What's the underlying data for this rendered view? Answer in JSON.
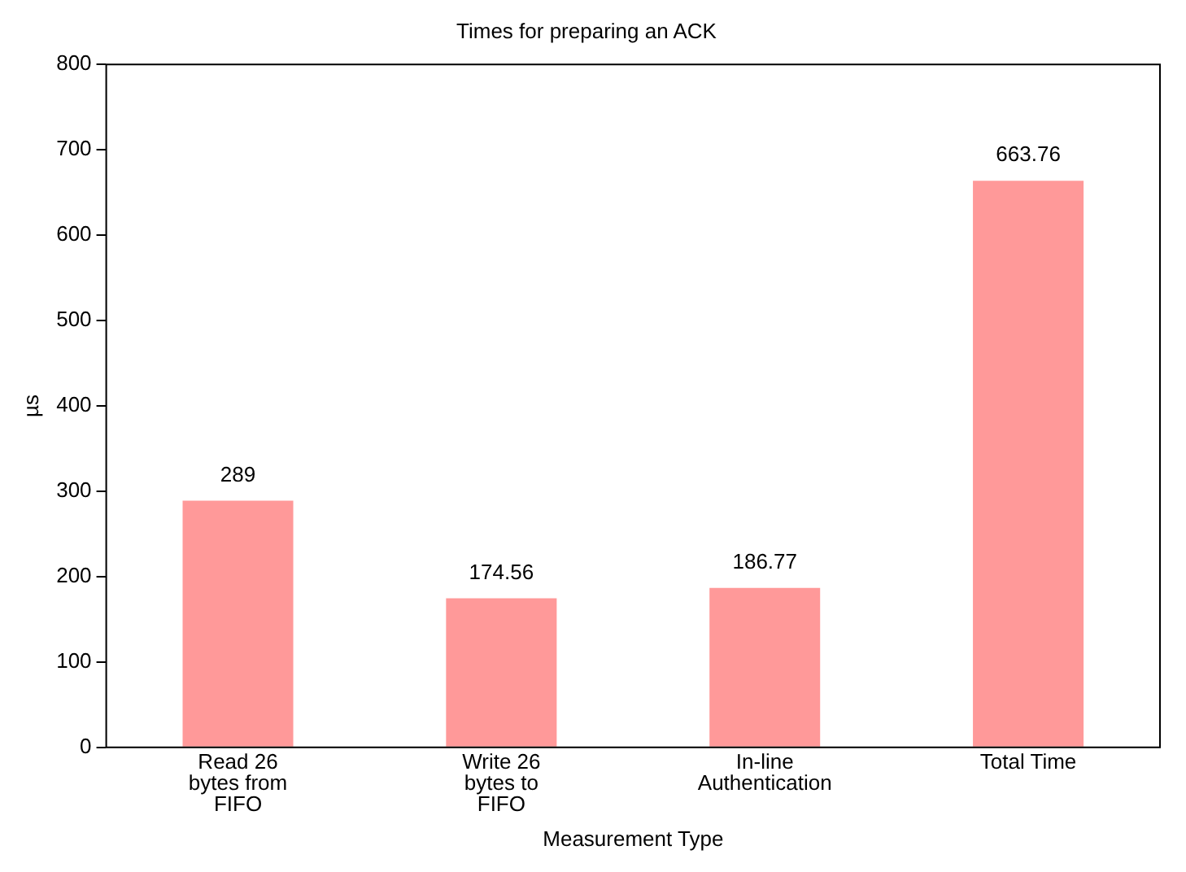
{
  "chart_data": {
    "type": "bar",
    "title": "Times for preparing an ACK",
    "xlabel": "Measurement Type",
    "ylabel": "µs",
    "categories": [
      "Read 26 bytes from FIFO",
      "Write 26 bytes to FIFO",
      "In-line Authentication",
      "Total Time"
    ],
    "values": [
      289,
      174.56,
      186.77,
      663.76
    ],
    "color": "#ff9999",
    "ylim": [
      0,
      800
    ],
    "yticks": [
      0,
      100,
      200,
      300,
      400,
      500,
      600,
      700,
      800
    ],
    "grid": false,
    "legend": false,
    "data_labels": true
  }
}
